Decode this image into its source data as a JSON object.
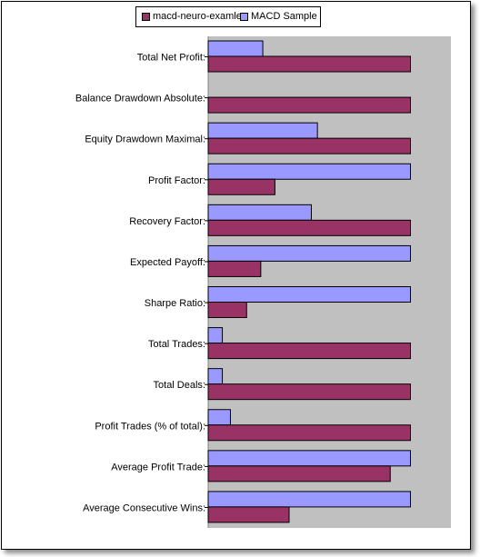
{
  "chart_data": {
    "type": "bar",
    "orientation": "horizontal",
    "categories": [
      "Total Net Profit:",
      "Balance Drawdown Absolute:",
      "Equity Drawdown Maximal:",
      "Profit Factor:",
      "Recovery Factor:",
      "Expected Payoff:",
      "Sharpe Ratio:",
      "Total Trades:",
      "Total Deals:",
      "Profit Trades (% of total):",
      "Average Profit Trade:",
      "Average Consecutive Wins:"
    ],
    "series": [
      {
        "name": "macd-neuro-examle",
        "color": "#993366",
        "values": [
          100,
          100,
          100,
          33,
          100,
          26,
          19,
          100,
          100,
          100,
          90,
          40
        ]
      },
      {
        "name": "MACD Sample",
        "color": "#9999ff",
        "values": [
          27,
          0,
          54,
          100,
          51,
          100,
          100,
          7,
          7,
          11,
          100,
          100
        ]
      }
    ],
    "xlim": [
      0,
      120
    ],
    "grid": false,
    "plot_background": "#c0c0c0",
    "legend_position": "top-center"
  }
}
